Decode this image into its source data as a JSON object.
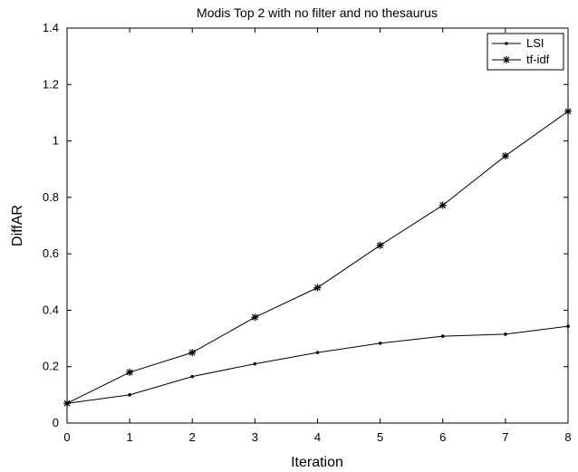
{
  "chart_data": {
    "type": "line",
    "title": "Modis Top 2 with no filter and no thesaurus",
    "xlabel": "Iteration",
    "ylabel": "DiffAR",
    "xlim": [
      0,
      8
    ],
    "ylim": [
      0,
      1.4
    ],
    "x": [
      0,
      1,
      2,
      3,
      4,
      5,
      6,
      7,
      8
    ],
    "xticks": [
      "0",
      "1",
      "2",
      "3",
      "4",
      "5",
      "6",
      "7",
      "8"
    ],
    "yticks": [
      "0",
      "0.2",
      "0.4",
      "0.6",
      "0.8",
      "1",
      "1.2",
      "1.4"
    ],
    "grid": false,
    "legend_position": "top-right",
    "series": [
      {
        "name": "LSI",
        "marker": "dot",
        "color": "#000000",
        "values": [
          0.07,
          0.1,
          0.165,
          0.21,
          0.25,
          0.283,
          0.308,
          0.315,
          0.343
        ]
      },
      {
        "name": "tf-idf",
        "marker": "asterisk",
        "color": "#000000",
        "values": [
          0.07,
          0.18,
          0.25,
          0.375,
          0.48,
          0.63,
          0.772,
          0.947,
          1.105
        ]
      }
    ]
  }
}
